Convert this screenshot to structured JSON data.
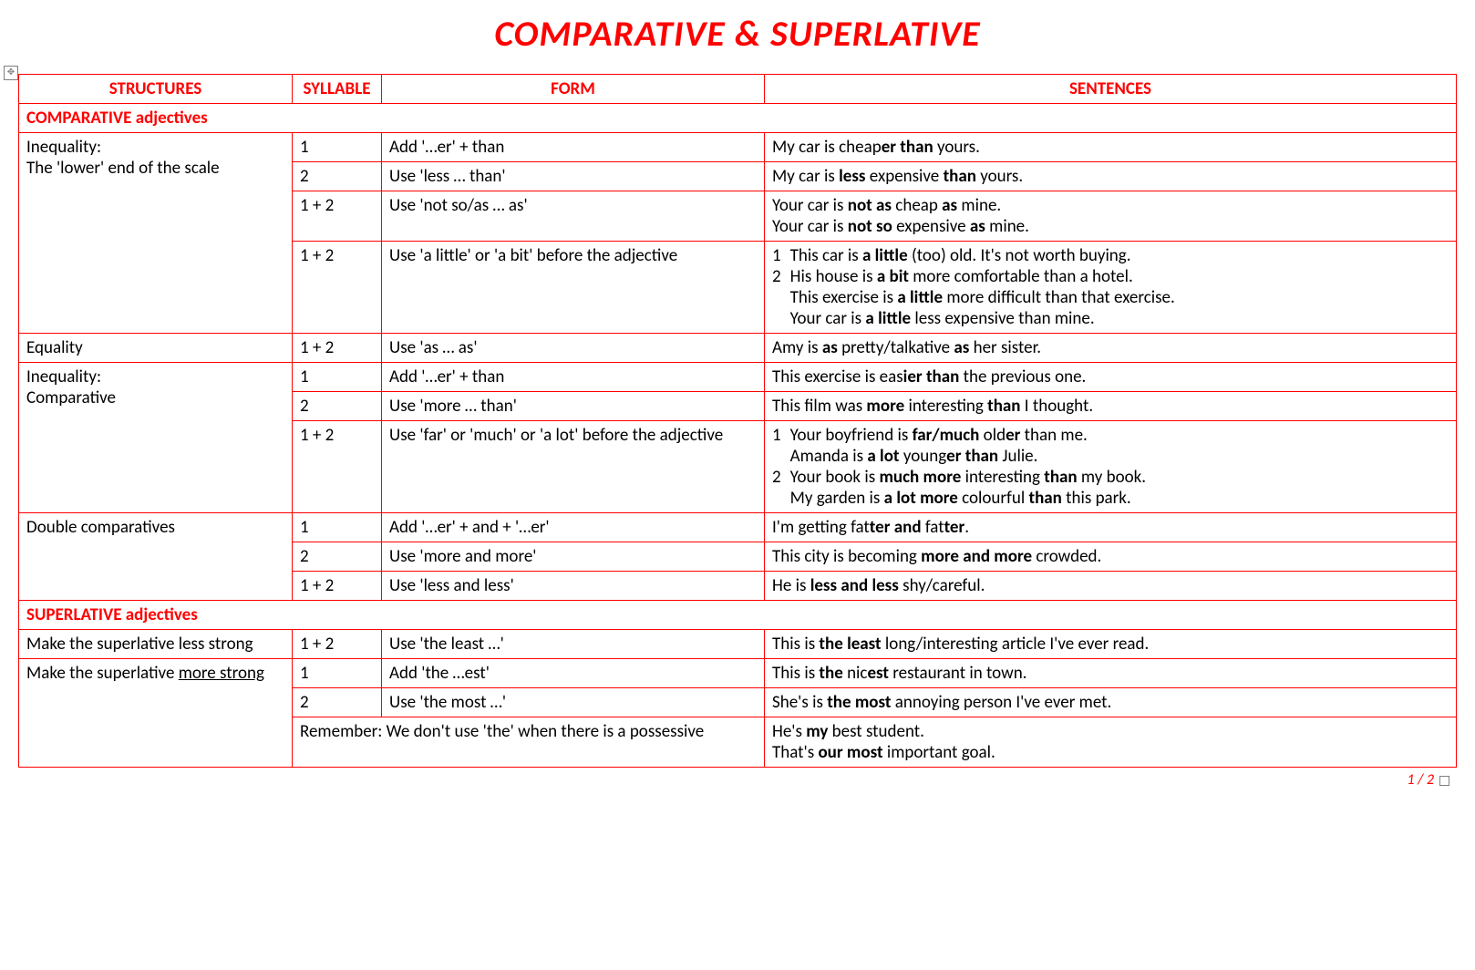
{
  "title": "COMPARATIVE & SUPERLATIVE",
  "page_indicator": "1 / 2",
  "headers": {
    "structures": "STRUCTURES",
    "syllable": "SYLLABLE",
    "form": "FORM",
    "sentences": "SENTENCES"
  },
  "sections": {
    "comparative": "COMPARATIVE adjectives",
    "superlative": "SUPERLATIVE adjectives"
  },
  "rows": {
    "ineq_lower": {
      "structure_l1": "Inequality:",
      "structure_l2": "The 'lower' end of the scale"
    },
    "r1": {
      "syl": "1",
      "form": "Add '…er' + than"
    },
    "r2": {
      "syl": "2",
      "form": "Use 'less … than'"
    },
    "r3": {
      "syl": "1 + 2",
      "form": "Use 'not so/as … as'"
    },
    "r4": {
      "syl": "1 + 2",
      "form": "Use 'a little' or 'a bit' before the adjective"
    },
    "equality": {
      "structure": "Equality"
    },
    "r5": {
      "syl": "1 + 2",
      "form": "Use 'as … as'"
    },
    "ineq_comp": {
      "structure_l1": "Inequality:",
      "structure_l2": "Comparative"
    },
    "r6": {
      "syl": "1",
      "form": "Add '…er' + than"
    },
    "r7": {
      "syl": "2",
      "form": "Use 'more … than'"
    },
    "r8": {
      "syl": "1 + 2",
      "form": "Use 'far' or 'much' or 'a lot' before the adjective"
    },
    "double": {
      "structure": "Double comparatives"
    },
    "r9": {
      "syl": "1",
      "form": "Add '…er' + and + '…er'"
    },
    "r10": {
      "syl": "2",
      "form": "Use 'more and more'"
    },
    "r11": {
      "syl": "1 + 2",
      "form": "Use 'less and less'"
    },
    "sup_less": {
      "structure": "Make the superlative less strong"
    },
    "r12": {
      "syl": "1 + 2",
      "form": "Use 'the least …'"
    },
    "sup_more": {
      "structure_pre": "Make the superlative ",
      "structure_u": "more strong"
    },
    "r13": {
      "syl": "1",
      "form": "Add 'the …est'"
    },
    "r14": {
      "syl": "2",
      "form": "Use 'the most …'"
    },
    "r15": {
      "form": "Remember: We don't use 'the' when there is a possessive"
    }
  },
  "sentences": {
    "s1": {
      "pre": "My car is cheap",
      "b1": "er than",
      "post": " yours."
    },
    "s2": {
      "pre": "My car is ",
      "b1": "less",
      "mid": " expensive ",
      "b2": "than",
      "post": " yours."
    },
    "s3a": {
      "pre": "Your car is ",
      "b1": "not as",
      "mid": " cheap ",
      "b2": "as",
      "post": " mine."
    },
    "s3b": {
      "pre": "Your car is ",
      "b1": "not so",
      "mid": " expensive ",
      "b2": "as",
      "post": " mine."
    },
    "s4a": {
      "num": "1",
      "pre": "This car is ",
      "b1": "a little",
      "post": " (too) old. It's not worth buying."
    },
    "s4b": {
      "num": "2",
      "pre": "His house is ",
      "b1": "a bit",
      "post": " more comfortable than a hotel."
    },
    "s4c": {
      "pre": "This exercise is ",
      "b1": "a little",
      "post": " more difficult than that exercise."
    },
    "s4d": {
      "pre": "Your car is ",
      "b1": "a little",
      "post": " less expensive than mine."
    },
    "s5": {
      "pre": "Amy is ",
      "b1": "as",
      "mid": " pretty/talkative ",
      "b2": "as",
      "post": " her sister."
    },
    "s6": {
      "pre": "This exercise is eas",
      "b1": "ier than",
      "post": " the previous one."
    },
    "s7": {
      "pre": "This film was ",
      "b1": "more",
      "mid": " interesting ",
      "b2": "than",
      "post": " I thought."
    },
    "s8a": {
      "num": "1",
      "pre": "Your boyfriend is ",
      "b1": "far/much",
      "mid": " old",
      "b2": "er",
      "post": " than me."
    },
    "s8b": {
      "pre": "Amanda is ",
      "b1": "a lot",
      "mid": " young",
      "b2": "er than",
      "post": " Julie."
    },
    "s8c": {
      "num": "2",
      "pre": "Your book is ",
      "b1": "much more",
      "mid": " interesting ",
      "b2": "than",
      "post": " my book."
    },
    "s8d": {
      "pre": "My garden is ",
      "b1": "a lot more",
      "mid": " colourful ",
      "b2": "than",
      "post": " this park."
    },
    "s9": {
      "pre": "I'm getting fat",
      "b1": "ter and",
      "mid": " fat",
      "b2": "ter",
      "post": "."
    },
    "s10": {
      "pre": "This city is becoming ",
      "b1": "more and more",
      "post": " crowded."
    },
    "s11": {
      "pre": "He is ",
      "b1": "less and less",
      "post": " shy/careful."
    },
    "s12": {
      "pre": "This is ",
      "b1": "the least",
      "post": " long/interesting article I've ever read."
    },
    "s13": {
      "pre": "This is ",
      "b1": "the",
      "mid": " nic",
      "b2": "est",
      "post": " restaurant in town."
    },
    "s14": {
      "pre": "She's is ",
      "b1": "the most",
      "post": " annoying person I've ever met."
    },
    "s15a": {
      "pre": "He's ",
      "b1": "my",
      "post": " best student."
    },
    "s15b": {
      "pre": "That's ",
      "b1": "our most",
      "post": " important goal."
    }
  }
}
